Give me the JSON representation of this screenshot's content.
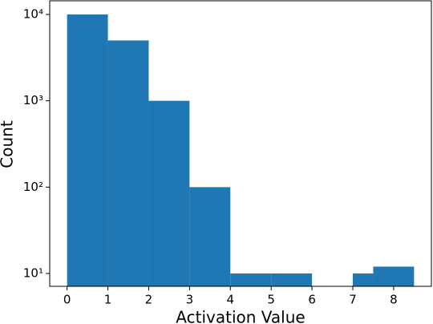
{
  "chart_data": {
    "type": "histogram",
    "xlabel": "Activation Value",
    "ylabel": "Count",
    "bins": [
      0,
      1,
      2,
      3,
      4,
      5,
      6,
      7,
      7.5,
      8.5
    ],
    "values": [
      10000,
      5000,
      1000,
      100,
      10,
      10,
      0,
      10,
      12
    ],
    "color": "#1f77b4",
    "xlim": [
      -0.425,
      8.925
    ],
    "xticks": [
      0,
      1,
      2,
      3,
      4,
      5,
      6,
      7,
      8
    ],
    "ylim": [
      7.1,
      14400
    ],
    "log_y": true,
    "yticks": [
      {
        "value": 10,
        "label": "10¹"
      },
      {
        "value": 100,
        "label": "10²"
      },
      {
        "value": 1000,
        "label": "10³"
      },
      {
        "value": 10000,
        "label": "10⁴"
      }
    ]
  }
}
